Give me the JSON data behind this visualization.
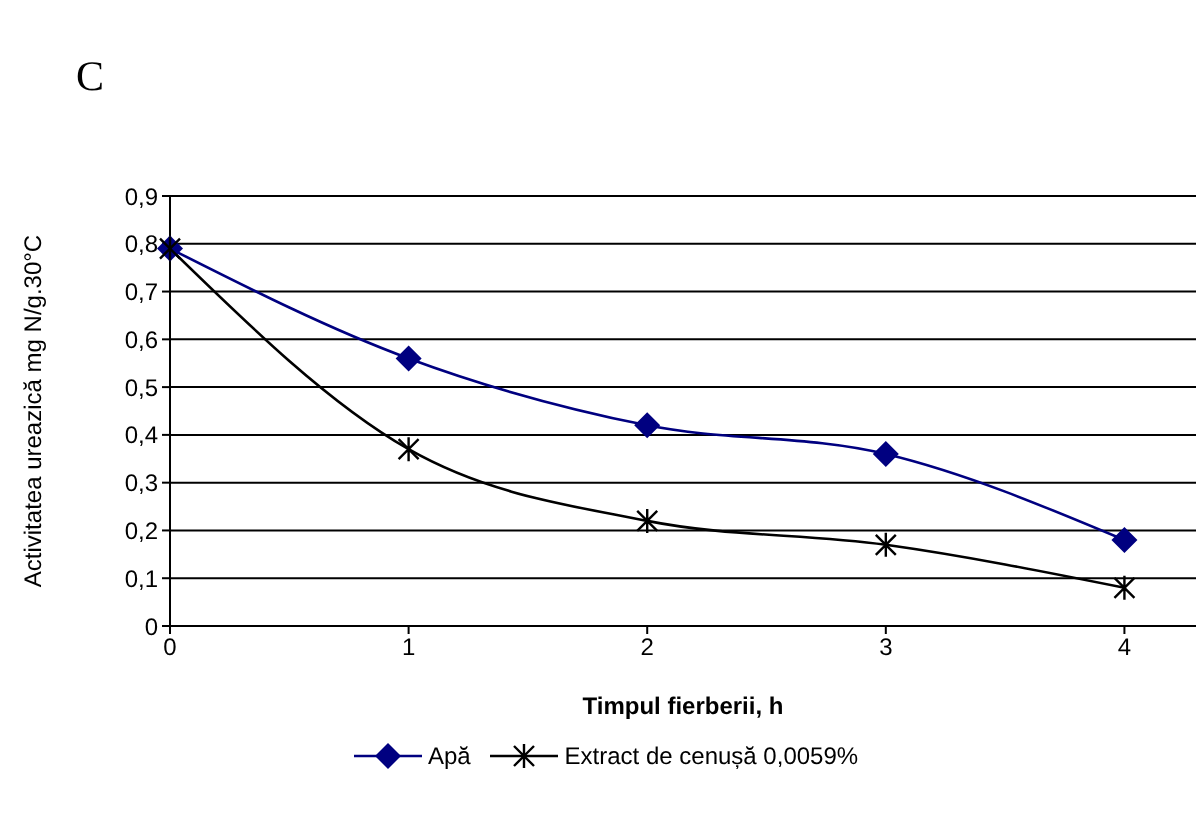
{
  "chart_data": {
    "type": "line",
    "title": "C",
    "xlabel": "Timpul fierberii, h",
    "ylabel": "Activitatea ureazică mg N/g.30°C",
    "x": [
      0,
      1,
      2,
      3,
      4
    ],
    "series": [
      {
        "name": "Apă",
        "color": "#000080",
        "values": [
          0.79,
          0.56,
          0.42,
          0.36,
          0.18
        ],
        "marker": "diamond"
      },
      {
        "name": "Extract de cenușă 0,0059%",
        "color": "#000000",
        "values": [
          0.79,
          0.37,
          0.22,
          0.17,
          0.08
        ],
        "marker": "cross"
      }
    ],
    "xlim": [
      0,
      4.3
    ],
    "xticks": [
      0,
      1,
      2,
      3,
      4
    ],
    "ylim": [
      0,
      0.9
    ],
    "yticks": [
      0,
      {
        "value": 0.1,
        "label": "0,1"
      },
      {
        "value": 0.2,
        "label": "0,2"
      },
      {
        "value": 0.3,
        "label": "0,3"
      },
      {
        "value": 0.4,
        "label": "0,4"
      },
      {
        "value": 0.5,
        "label": "0,5"
      },
      {
        "value": 0.6,
        "label": "0,6"
      },
      {
        "value": 0.7,
        "label": "0,7"
      },
      {
        "value": 0.8,
        "label": "0,8"
      },
      {
        "value": 0.9,
        "label": "0,9"
      }
    ],
    "grid": "y",
    "legend": "bottom",
    "line_style": "solid"
  }
}
